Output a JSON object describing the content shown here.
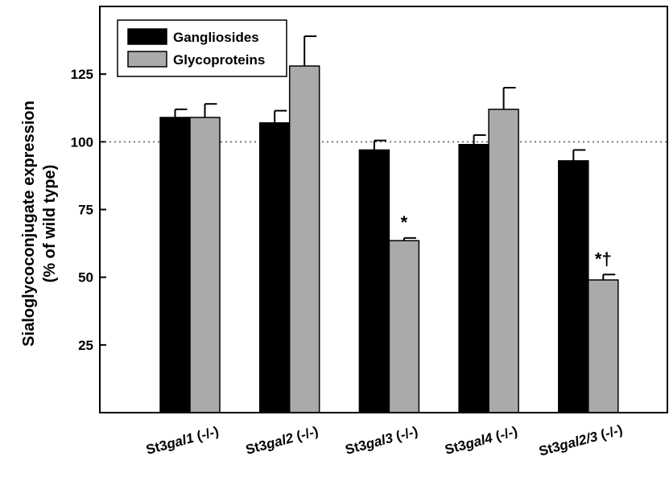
{
  "chart_data": {
    "type": "bar",
    "ylabel_line1": "Sialoglycoconjugate expression",
    "ylabel_line2": "(% of wild type)",
    "ylim": [
      0,
      150
    ],
    "yticks": [
      25,
      50,
      75,
      100,
      125
    ],
    "reference_line": 100,
    "legend_position": "top-left",
    "categories": [
      {
        "prefix": "St3",
        "italic": "gal1",
        "suffix": " (-/-)"
      },
      {
        "prefix": "St3",
        "italic": "gal2",
        "suffix": " (-/-)"
      },
      {
        "prefix": "St3",
        "italic": "gal3",
        "suffix": " (-/-)"
      },
      {
        "prefix": "St3",
        "italic": "gal4",
        "suffix": " (-/-)"
      },
      {
        "prefix": "St3",
        "italic": "gal2/3",
        "suffix": " (-/-)"
      }
    ],
    "series": [
      {
        "name": "Gangliosides",
        "color": "#000000",
        "values": [
          109,
          107,
          97,
          99,
          93
        ],
        "errors": [
          3,
          4.5,
          3.5,
          3.5,
          4
        ]
      },
      {
        "name": "Glycoproteins",
        "color": "#aaaaaa",
        "values": [
          109,
          128,
          63.5,
          112,
          49
        ],
        "errors": [
          5,
          11,
          1,
          8,
          2
        ]
      }
    ],
    "annotations": [
      "",
      "",
      "*",
      "",
      "*†"
    ]
  }
}
